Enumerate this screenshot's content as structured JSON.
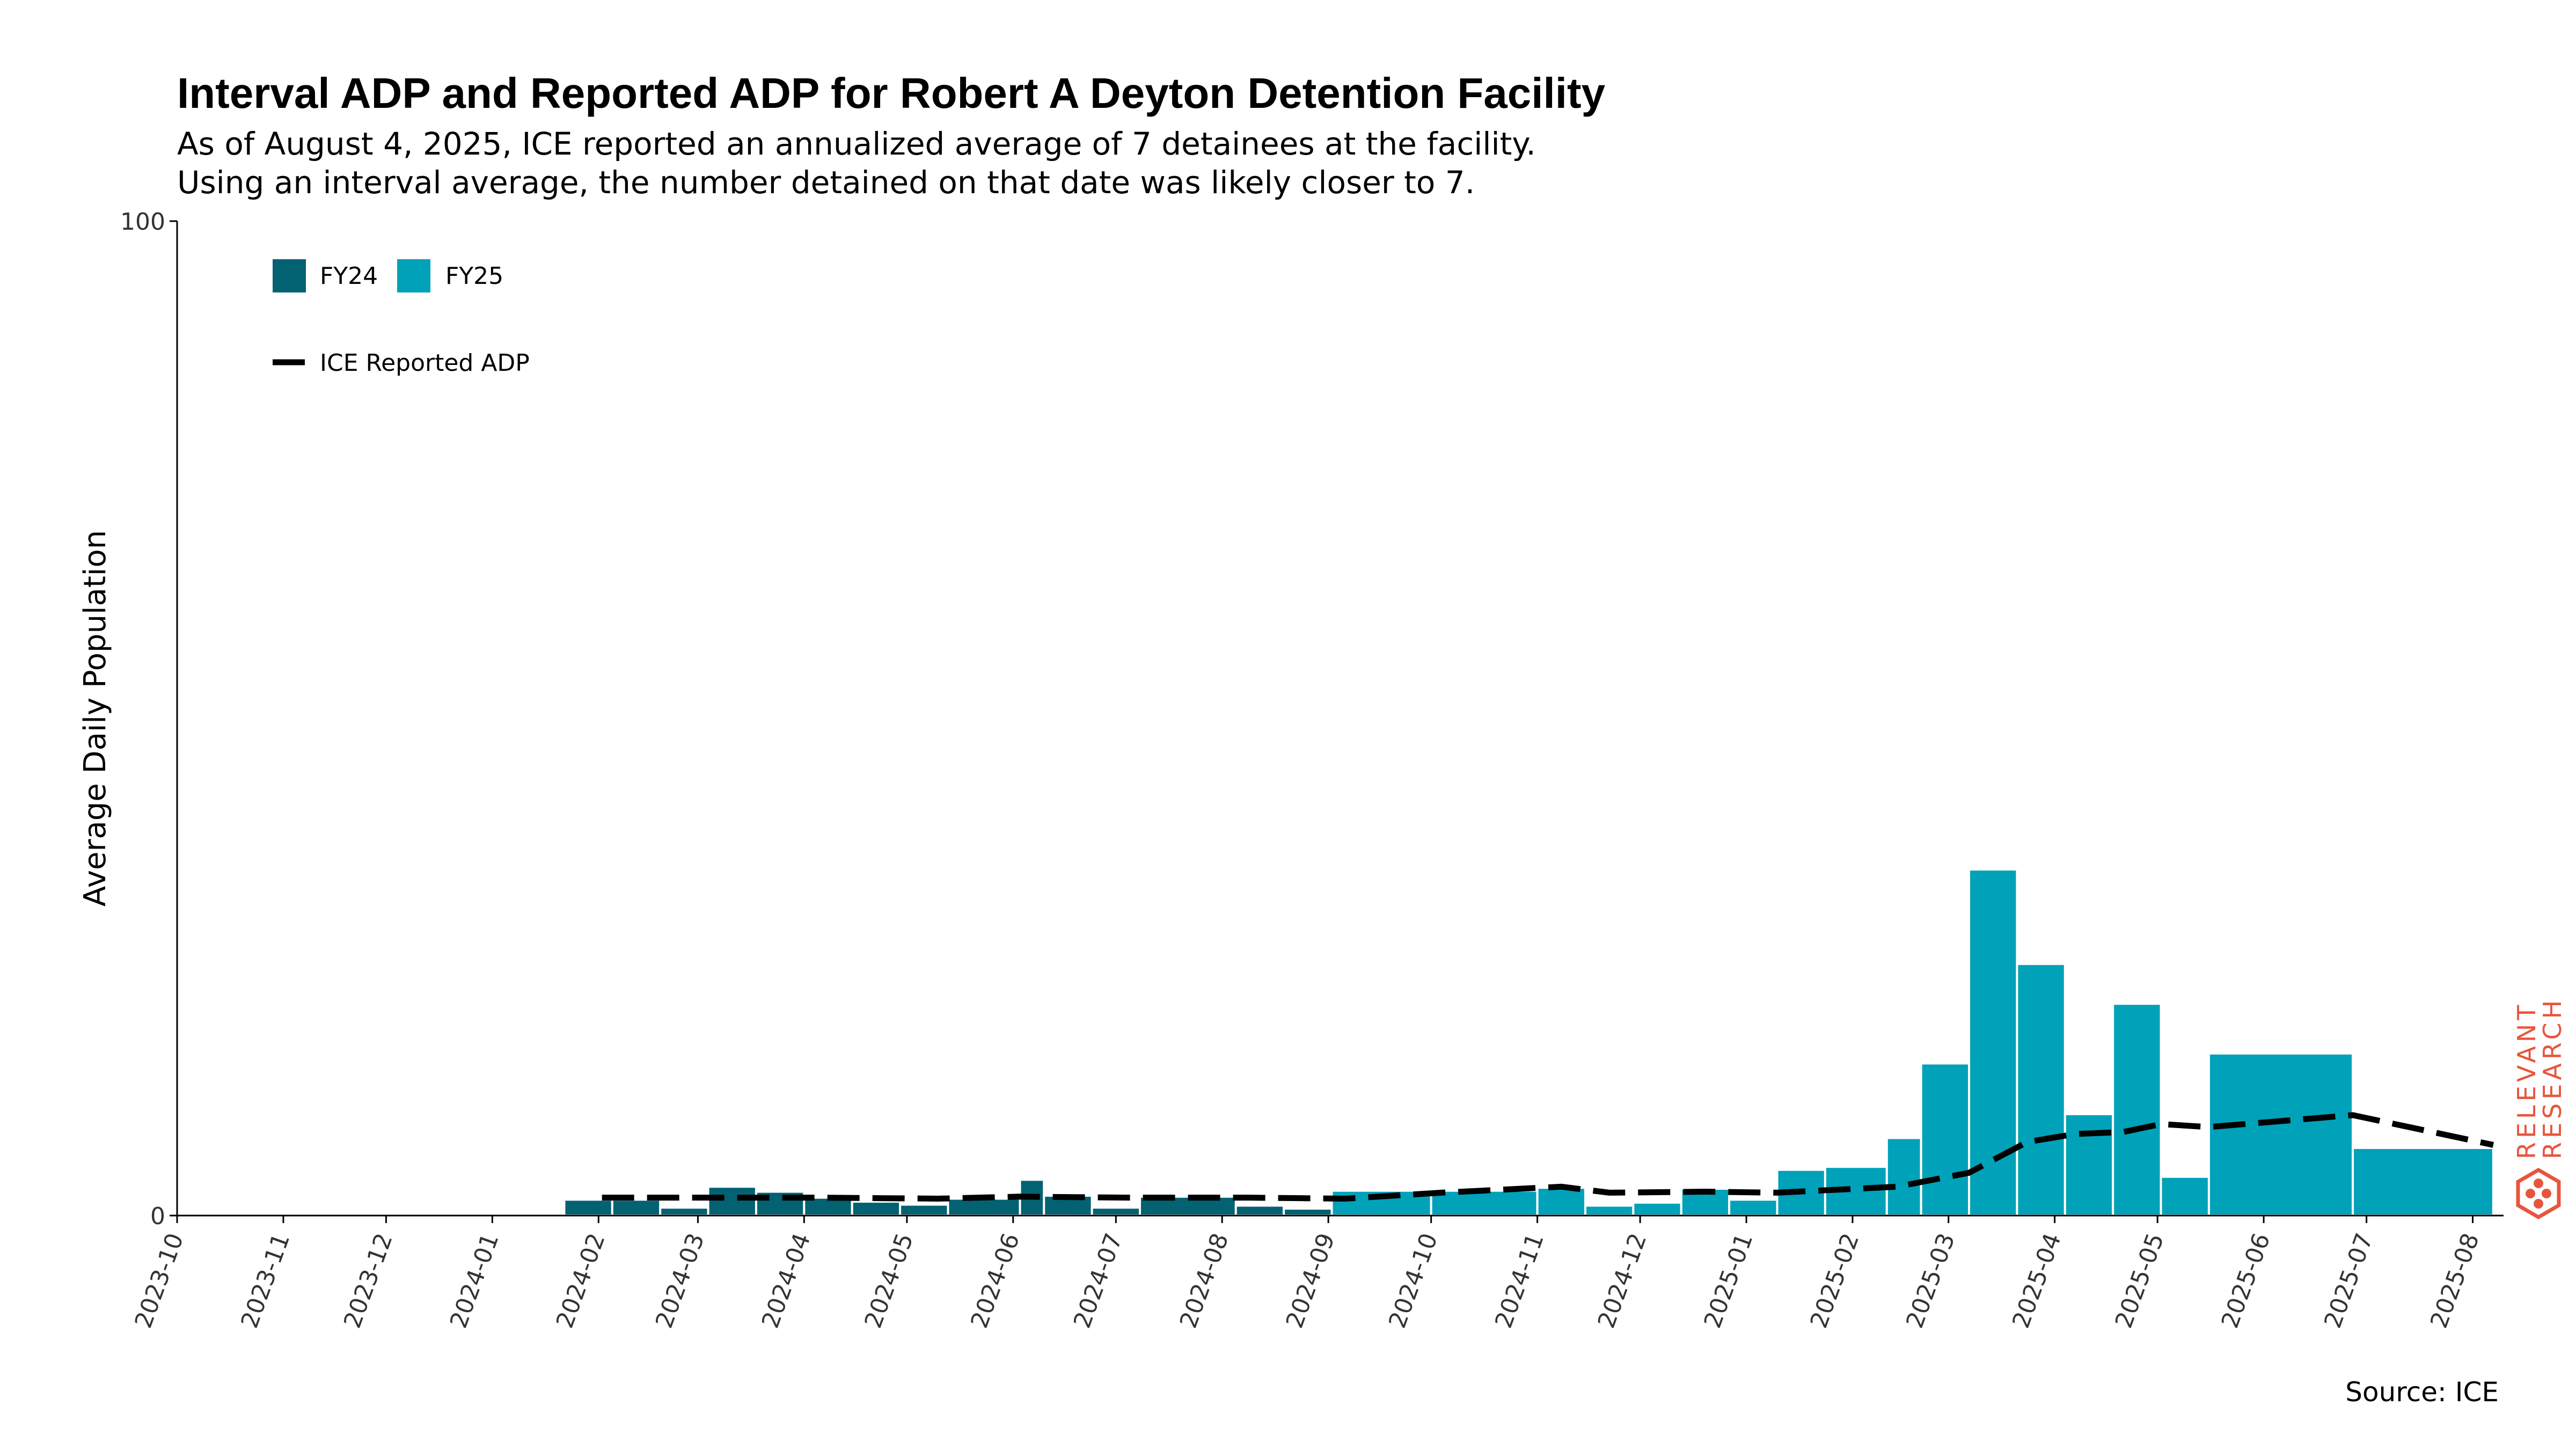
{
  "title": "Interval ADP and Reported ADP for Robert A Deyton Detention Facility",
  "subtitle_line1": "As of August 4, 2025, ICE reported an annualized average of 7 detainees at the facility.",
  "subtitle_line2": "Using an interval average, the number detained on that date was likely closer to 7.",
  "source": "Source: ICE",
  "logo_text": [
    "RELEVANT",
    "RESEARCH"
  ],
  "colors": {
    "fy24": "#036272",
    "fy25": "#00A2B9",
    "line": "#000000",
    "logo": "#E8553C"
  },
  "chart_data": {
    "type": "bar",
    "ylabel": "Average Daily Population",
    "ylim": [
      0,
      100
    ],
    "y_ticks": [
      "0",
      "100"
    ],
    "x_range": [
      "2023-10-01",
      "2025-08-10"
    ],
    "x_ticks": [
      "2023-10",
      "2023-11",
      "2023-12",
      "2024-01",
      "2024-02",
      "2024-03",
      "2024-04",
      "2024-05",
      "2024-06",
      "2024-07",
      "2024-08",
      "2024-09",
      "2024-10",
      "2024-11",
      "2024-12",
      "2025-01",
      "2025-02",
      "2025-03",
      "2025-04",
      "2025-05",
      "2025-06",
      "2025-07",
      "2025-08"
    ],
    "legend": [
      "FY24",
      "FY25",
      "ICE Reported ADP"
    ],
    "legend_position": "top-left",
    "bars": [
      {
        "series": "FY24",
        "start": "2024-01-22",
        "end": "2024-02-05",
        "value": 1.6
      },
      {
        "series": "FY24",
        "start": "2024-02-05",
        "end": "2024-02-19",
        "value": 1.6
      },
      {
        "series": "FY24",
        "start": "2024-02-19",
        "end": "2024-03-04",
        "value": 0.8
      },
      {
        "series": "FY24",
        "start": "2024-03-04",
        "end": "2024-03-18",
        "value": 2.9
      },
      {
        "series": "FY24",
        "start": "2024-03-18",
        "end": "2024-04-01",
        "value": 2.4
      },
      {
        "series": "FY24",
        "start": "2024-04-01",
        "end": "2024-04-15",
        "value": 1.8
      },
      {
        "series": "FY24",
        "start": "2024-04-15",
        "end": "2024-04-29",
        "value": 1.4
      },
      {
        "series": "FY24",
        "start": "2024-04-29",
        "end": "2024-05-13",
        "value": 1.1
      },
      {
        "series": "FY24",
        "start": "2024-05-13",
        "end": "2024-06-03",
        "value": 1.7
      },
      {
        "series": "FY24",
        "start": "2024-06-03",
        "end": "2024-06-10",
        "value": 3.6
      },
      {
        "series": "FY24",
        "start": "2024-06-10",
        "end": "2024-06-24",
        "value": 2.0
      },
      {
        "series": "FY24",
        "start": "2024-06-24",
        "end": "2024-07-08",
        "value": 0.8
      },
      {
        "series": "FY24",
        "start": "2024-07-08",
        "end": "2024-08-05",
        "value": 1.9
      },
      {
        "series": "FY24",
        "start": "2024-08-05",
        "end": "2024-08-19",
        "value": 1.0
      },
      {
        "series": "FY24",
        "start": "2024-08-19",
        "end": "2024-09-02",
        "value": 0.7
      },
      {
        "series": "FY25",
        "start": "2024-09-02",
        "end": "2024-10-01",
        "value": 2.5
      },
      {
        "series": "FY25",
        "start": "2024-10-01",
        "end": "2024-11-01",
        "value": 2.5
      },
      {
        "series": "FY25",
        "start": "2024-11-01",
        "end": "2024-11-15",
        "value": 2.8
      },
      {
        "series": "FY25",
        "start": "2024-11-15",
        "end": "2024-11-29",
        "value": 1.0
      },
      {
        "series": "FY25",
        "start": "2024-11-29",
        "end": "2024-12-13",
        "value": 1.3
      },
      {
        "series": "FY25",
        "start": "2024-12-13",
        "end": "2024-12-27",
        "value": 2.7
      },
      {
        "series": "FY25",
        "start": "2024-12-27",
        "end": "2025-01-10",
        "value": 1.6
      },
      {
        "series": "FY25",
        "start": "2025-01-10",
        "end": "2025-01-24",
        "value": 4.6
      },
      {
        "series": "FY25",
        "start": "2025-01-24",
        "end": "2025-02-11",
        "value": 4.9
      },
      {
        "series": "FY25",
        "start": "2025-02-11",
        "end": "2025-02-21",
        "value": 7.8
      },
      {
        "series": "FY25",
        "start": "2025-02-21",
        "end": "2025-03-07",
        "value": 15.3
      },
      {
        "series": "FY25",
        "start": "2025-03-07",
        "end": "2025-03-21",
        "value": 34.8
      },
      {
        "series": "FY25",
        "start": "2025-03-21",
        "end": "2025-04-04",
        "value": 25.3
      },
      {
        "series": "FY25",
        "start": "2025-04-04",
        "end": "2025-04-18",
        "value": 10.2
      },
      {
        "series": "FY25",
        "start": "2025-04-18",
        "end": "2025-05-02",
        "value": 21.3
      },
      {
        "series": "FY25",
        "start": "2025-05-02",
        "end": "2025-05-16",
        "value": 3.9
      },
      {
        "series": "FY25",
        "start": "2025-05-16",
        "end": "2025-06-27",
        "value": 16.3
      },
      {
        "series": "FY25",
        "start": "2025-06-27",
        "end": "2025-08-07",
        "value": 6.8
      }
    ],
    "reported_adp": [
      {
        "x": "2024-02-02",
        "y": 1.8
      },
      {
        "x": "2024-04-05",
        "y": 1.8
      },
      {
        "x": "2024-05-10",
        "y": 1.7
      },
      {
        "x": "2024-06-03",
        "y": 1.9
      },
      {
        "x": "2024-07-05",
        "y": 1.8
      },
      {
        "x": "2024-08-09",
        "y": 1.8
      },
      {
        "x": "2024-09-06",
        "y": 1.7
      },
      {
        "x": "2024-10-04",
        "y": 2.3
      },
      {
        "x": "2024-11-08",
        "y": 2.9
      },
      {
        "x": "2024-11-22",
        "y": 2.3
      },
      {
        "x": "2024-12-20",
        "y": 2.4
      },
      {
        "x": "2025-01-10",
        "y": 2.3
      },
      {
        "x": "2025-02-14",
        "y": 2.9
      },
      {
        "x": "2025-03-07",
        "y": 4.3
      },
      {
        "x": "2025-03-24",
        "y": 7.4
      },
      {
        "x": "2025-04-07",
        "y": 8.2
      },
      {
        "x": "2025-04-21",
        "y": 8.4
      },
      {
        "x": "2025-05-02",
        "y": 9.2
      },
      {
        "x": "2025-05-16",
        "y": 8.9
      },
      {
        "x": "2025-06-06",
        "y": 9.5
      },
      {
        "x": "2025-06-27",
        "y": 10.1
      },
      {
        "x": "2025-08-07",
        "y": 7.1
      }
    ]
  }
}
